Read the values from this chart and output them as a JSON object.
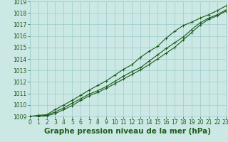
{
  "xlabel": "Graphe pression niveau de la mer (hPa)",
  "bg_color": "#cce8e4",
  "grid_color": "#99cccc",
  "line_color": "#1a5c1a",
  "marker": "+",
  "xlim": [
    0,
    23
  ],
  "ylim": [
    1009,
    1019
  ],
  "yticks": [
    1009,
    1010,
    1011,
    1012,
    1013,
    1014,
    1015,
    1016,
    1017,
    1018,
    1019
  ],
  "xticks": [
    0,
    1,
    2,
    3,
    4,
    5,
    6,
    7,
    8,
    9,
    10,
    11,
    12,
    13,
    14,
    15,
    16,
    17,
    18,
    19,
    20,
    21,
    22,
    23
  ],
  "series1": [
    1009.0,
    1009.1,
    1009.15,
    1009.6,
    1010.0,
    1010.4,
    1010.85,
    1011.3,
    1011.7,
    1012.1,
    1012.6,
    1013.1,
    1013.5,
    1014.15,
    1014.65,
    1015.1,
    1015.8,
    1016.4,
    1016.9,
    1017.2,
    1017.55,
    1017.85,
    1018.2,
    1018.6
  ],
  "series2": [
    1009.0,
    1009.05,
    1009.1,
    1009.4,
    1009.75,
    1010.15,
    1010.55,
    1010.95,
    1011.25,
    1011.6,
    1012.05,
    1012.5,
    1012.9,
    1013.25,
    1013.8,
    1014.35,
    1014.9,
    1015.4,
    1015.9,
    1016.55,
    1017.15,
    1017.55,
    1017.85,
    1018.25
  ],
  "series3": [
    1009.0,
    1009.0,
    1009.05,
    1009.25,
    1009.6,
    1009.95,
    1010.4,
    1010.8,
    1011.1,
    1011.45,
    1011.85,
    1012.25,
    1012.65,
    1013.05,
    1013.5,
    1014.0,
    1014.5,
    1015.0,
    1015.65,
    1016.3,
    1016.95,
    1017.45,
    1017.75,
    1018.15
  ],
  "tick_fontsize": 5.5,
  "xlabel_fontsize": 7.5,
  "markersize": 2.5,
  "linewidth": 0.8
}
